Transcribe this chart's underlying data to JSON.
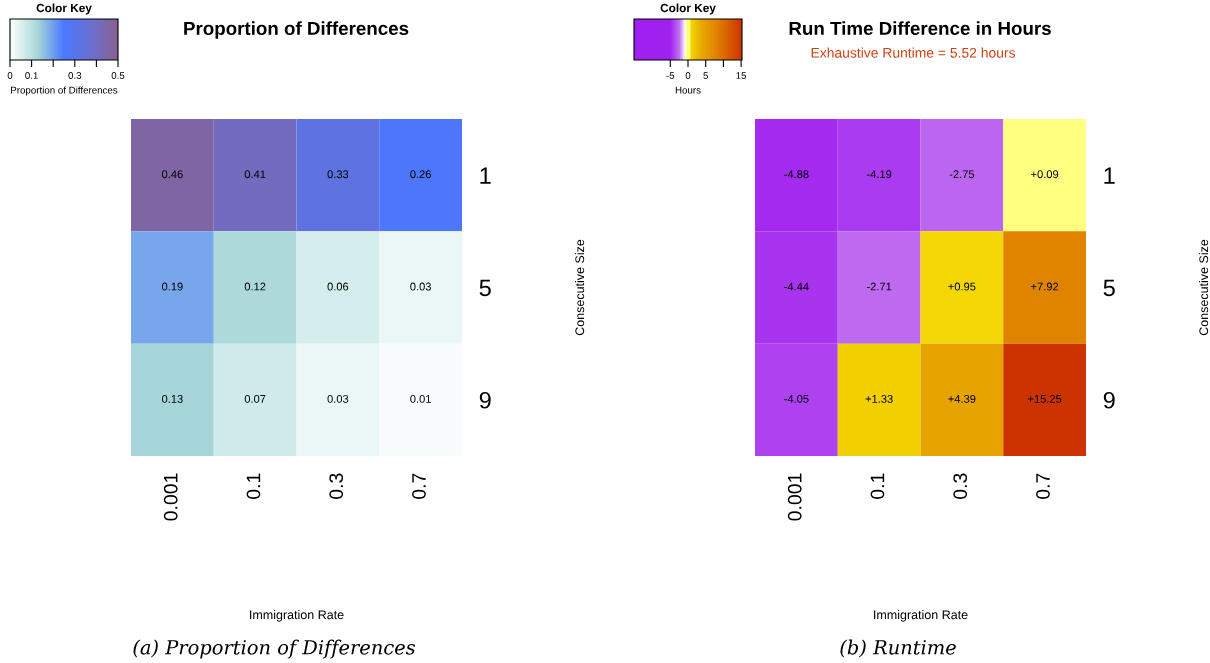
{
  "chart_data": [
    {
      "type": "heatmap",
      "title": "Proportion of Differences",
      "xlabel": "Immigration Rate",
      "ylabel": "Consecutive Size",
      "clabel": "Proportion of Differences",
      "categories": [
        "0.001",
        "0.1",
        "0.3",
        "0.7"
      ],
      "y_categories": [
        "1",
        "5",
        "9"
      ],
      "cells": [
        [
          0.46,
          0.41,
          0.33,
          0.26
        ],
        [
          0.19,
          0.12,
          0.06,
          0.03
        ],
        [
          0.13,
          0.07,
          0.03,
          0.01
        ]
      ],
      "data_labels": true,
      "clim": [
        0,
        0.5
      ],
      "cticks": [
        0,
        0.1,
        {
          "value": 0.2,
          "label": null
        },
        0.3,
        {
          "value": 0.4,
          "label": null
        },
        0.5
      ],
      "annotations": [
        "Color Key",
        "(a) Proportion of Differences"
      ]
    },
    {
      "type": "heatmap",
      "title": "Run Time Difference in Hours",
      "subtitle": "Exhaustive Runtime = 5.52 hours",
      "xlabel": "Immigration Rate",
      "ylabel": "Consecutive Size",
      "clabel": "Hours",
      "categories": [
        "0.001",
        "0.1",
        "0.3",
        "0.7"
      ],
      "y_categories": [
        "1",
        "5",
        "9"
      ],
      "cells": [
        [
          -4.88,
          -4.19,
          -2.75,
          0.09
        ],
        [
          -4.44,
          -2.71,
          0.95,
          7.92
        ],
        [
          -4.05,
          1.33,
          4.39,
          15.25
        ]
      ],
      "cell_labels": [
        [
          "-4.88",
          "-4.19",
          "-2.75",
          "+0.09"
        ],
        [
          "-4.44",
          "-2.71",
          "+0.95",
          "+7.92"
        ],
        [
          "-4.05",
          "+1.33",
          "+4.39",
          "+15.25"
        ]
      ],
      "clim": [
        -15.25,
        15.25
      ],
      "cticks": [
        -5,
        0,
        5,
        {
          "value": 10,
          "label": null
        },
        15
      ],
      "annotations": [
        "Color Key",
        "(b) Runtime"
      ]
    }
  ]
}
